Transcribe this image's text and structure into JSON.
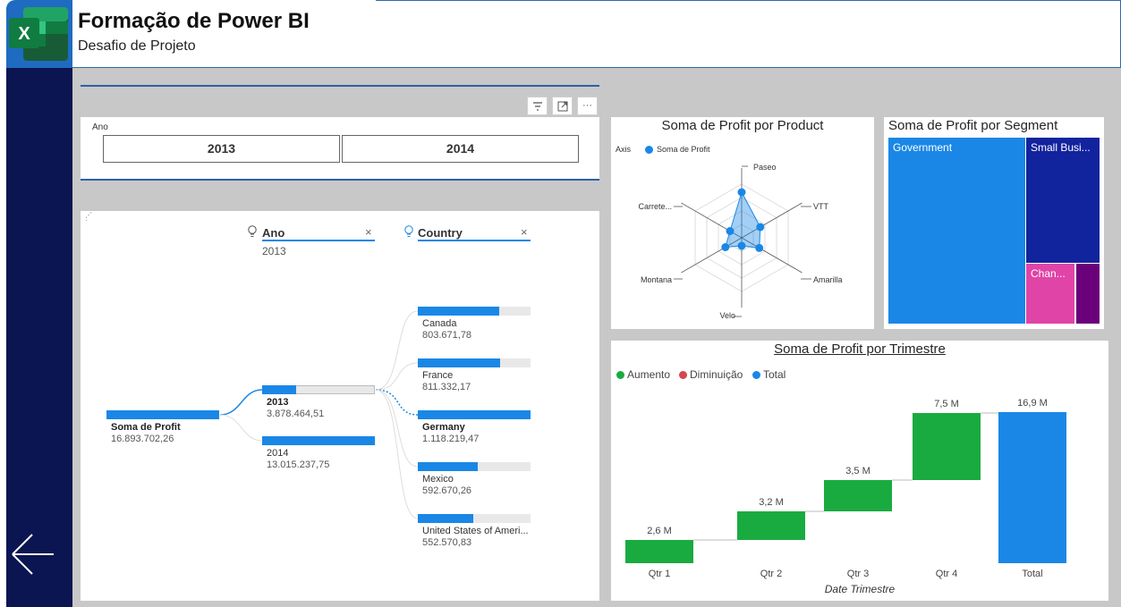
{
  "header": {
    "title": "Formação de Power BI",
    "subtitle": "Desafio de Projeto",
    "logo_icon": "excel-icon"
  },
  "colors": {
    "primary_blue": "#1a87e6",
    "sidebar": "#0b1551",
    "canvas": "#c8c8c8",
    "increase": "#1aab40",
    "decrease": "#d64550",
    "total": "#1a87e6"
  },
  "sidebar": {
    "back_icon": "arrow-left-icon"
  },
  "slicer": {
    "title": "Ano",
    "options": [
      "2013",
      "2014"
    ],
    "header_icons": [
      "filter-icon",
      "focus-mode-icon",
      "more-options-icon"
    ]
  },
  "decomp": {
    "root": {
      "label": "Soma de Profit",
      "value": "16.893.702,26"
    },
    "levels": [
      {
        "name": "Ano",
        "selected": "2013"
      },
      {
        "name": "Country",
        "selected": ""
      }
    ],
    "year_nodes": [
      {
        "label": "2013",
        "value": "3.878.464,51",
        "fraction": 0.3,
        "selected": true
      },
      {
        "label": "2014",
        "value": "13.015.237,75",
        "fraction": 1.0,
        "selected": false
      }
    ],
    "country_nodes": [
      {
        "label": "Canada",
        "value": "803.671,78",
        "fraction": 0.72,
        "selected": false
      },
      {
        "label": "France",
        "value": "811.332,17",
        "fraction": 0.73,
        "selected": false
      },
      {
        "label": "Germany",
        "value": "1.118.219,47",
        "fraction": 1.0,
        "selected": true
      },
      {
        "label": "Mexico",
        "value": "592.670,26",
        "fraction": 0.53,
        "selected": false
      },
      {
        "label": "United States of Ameri...",
        "value": "552.570,83",
        "fraction": 0.49,
        "selected": false
      }
    ]
  },
  "radar": {
    "title": "Soma de Profit por Product",
    "legend_axis": "Axis",
    "legend_series": "Soma de Profit",
    "axes": [
      "Paseo",
      "VTT",
      "Amarilla",
      "Velo",
      "Montana",
      "Carrete..."
    ],
    "values": [
      0.85,
      0.4,
      0.38,
      0.15,
      0.35,
      0.25
    ]
  },
  "treemap": {
    "title": "Soma de Profit por Segment",
    "segments": [
      {
        "label": "Government",
        "color": "#1a87e6"
      },
      {
        "label": "Small Busi...",
        "color": "#12239e"
      },
      {
        "label": "Chan...",
        "color": "#e044a7"
      },
      {
        "label": "",
        "color": "#6b007b"
      }
    ]
  },
  "waterfall": {
    "title": "Soma de Profit por Trimestre",
    "legend": [
      "Aumento",
      "Diminuição",
      "Total"
    ],
    "xlabel": "Date Trimestre"
  },
  "chart_data": {
    "type": "bar",
    "title": "Soma de Profit por Trimestre",
    "xlabel": "Date Trimestre",
    "categories": [
      "Qtr 1",
      "Qtr 2",
      "Qtr 3",
      "Qtr 4",
      "Total"
    ],
    "values": [
      2.6,
      3.2,
      3.5,
      7.5,
      16.9
    ],
    "data_labels": [
      "2,6 M",
      "3,2 M",
      "3,5 M",
      "7,5 M",
      "16,9 M"
    ],
    "kind": [
      "increase",
      "increase",
      "increase",
      "increase",
      "total"
    ],
    "unit": "M",
    "legend": [
      "Aumento",
      "Diminuição",
      "Total"
    ],
    "legend_position": "top-left",
    "grid": false
  }
}
